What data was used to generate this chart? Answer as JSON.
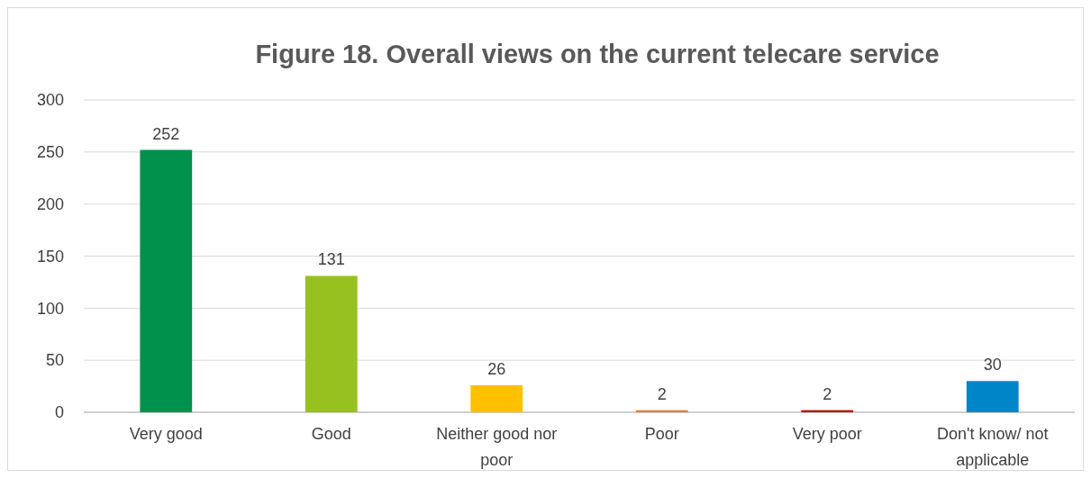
{
  "chart_data": {
    "type": "bar",
    "title": "Figure 18. Overall views on the current telecare service",
    "categories": [
      "Very good",
      "Good",
      "Neither good nor poor",
      "Poor",
      "Very poor",
      "Don't know/ not applicable"
    ],
    "values": [
      252,
      131,
      26,
      2,
      2,
      30
    ],
    "colors": [
      "#00914c",
      "#97c11f",
      "#ffc000",
      "#ed7d31",
      "#c00000",
      "#0085c8"
    ],
    "ylim": [
      0,
      300
    ],
    "yticks": [
      0,
      50,
      100,
      150,
      200,
      250,
      300
    ],
    "grid": "y",
    "data_labels": true
  }
}
